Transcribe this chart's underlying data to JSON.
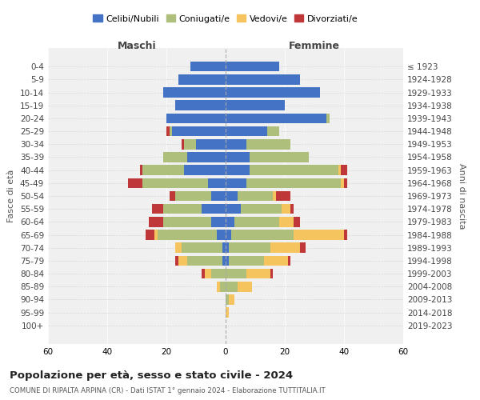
{
  "age_groups": [
    "0-4",
    "5-9",
    "10-14",
    "15-19",
    "20-24",
    "25-29",
    "30-34",
    "35-39",
    "40-44",
    "45-49",
    "50-54",
    "55-59",
    "60-64",
    "65-69",
    "70-74",
    "75-79",
    "80-84",
    "85-89",
    "90-94",
    "95-99",
    "100+"
  ],
  "birth_years": [
    "2019-2023",
    "2014-2018",
    "2009-2013",
    "2004-2008",
    "1999-2003",
    "1994-1998",
    "1989-1993",
    "1984-1988",
    "1979-1983",
    "1974-1978",
    "1969-1973",
    "1964-1968",
    "1959-1963",
    "1954-1958",
    "1949-1953",
    "1944-1948",
    "1939-1943",
    "1934-1938",
    "1929-1933",
    "1924-1928",
    "≤ 1923"
  ],
  "males": {
    "celibi": [
      12,
      16,
      21,
      17,
      20,
      18,
      10,
      13,
      14,
      6,
      5,
      8,
      5,
      3,
      1,
      1,
      0,
      0,
      0,
      0,
      0
    ],
    "coniugati": [
      0,
      0,
      0,
      0,
      0,
      1,
      4,
      8,
      14,
      22,
      12,
      13,
      16,
      20,
      14,
      12,
      5,
      2,
      0,
      0,
      0
    ],
    "vedovi": [
      0,
      0,
      0,
      0,
      0,
      0,
      0,
      0,
      0,
      0,
      0,
      0,
      0,
      1,
      2,
      3,
      2,
      1,
      0,
      0,
      0
    ],
    "divorziati": [
      0,
      0,
      0,
      0,
      0,
      1,
      1,
      0,
      1,
      5,
      2,
      4,
      5,
      3,
      0,
      1,
      1,
      0,
      0,
      0,
      0
    ]
  },
  "females": {
    "nubili": [
      18,
      25,
      32,
      20,
      34,
      14,
      7,
      8,
      8,
      7,
      4,
      5,
      3,
      2,
      1,
      1,
      0,
      0,
      0,
      0,
      0
    ],
    "coniugate": [
      0,
      0,
      0,
      0,
      1,
      4,
      15,
      20,
      30,
      32,
      12,
      14,
      15,
      21,
      14,
      12,
      7,
      4,
      1,
      0,
      0
    ],
    "vedove": [
      0,
      0,
      0,
      0,
      0,
      0,
      0,
      0,
      1,
      1,
      1,
      3,
      5,
      17,
      10,
      8,
      8,
      5,
      2,
      1,
      0
    ],
    "divorziate": [
      0,
      0,
      0,
      0,
      0,
      0,
      0,
      0,
      2,
      1,
      5,
      1,
      2,
      1,
      2,
      1,
      1,
      0,
      0,
      0,
      0
    ]
  },
  "colors": {
    "celibi": "#4472C4",
    "coniugati": "#ADBF7B",
    "vedovi": "#F5C45E",
    "divorziati": "#C0373A"
  },
  "xlim": 60,
  "title": "Popolazione per età, sesso e stato civile - 2024",
  "subtitle": "COMUNE DI RIPALTA ARPINA (CR) - Dati ISTAT 1° gennaio 2024 - Elaborazione TUTTITALIA.IT",
  "xlabel_left": "Maschi",
  "xlabel_right": "Femmine",
  "ylabel_left": "Fasce di età",
  "ylabel_right": "Anni di nascita",
  "legend_labels": [
    "Celibi/Nubili",
    "Coniugati/e",
    "Vedovi/e",
    "Divorziati/e"
  ],
  "bg_color": "#f0f0f0"
}
